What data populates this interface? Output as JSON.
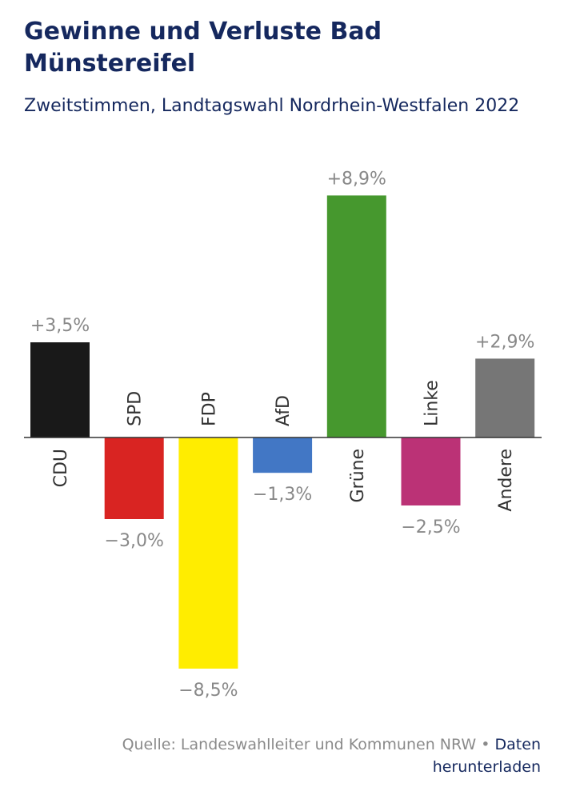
{
  "header": {
    "title": "Gewinne und Verluste Bad Münstereifel",
    "subtitle": "Zweitstimmen, Landtagswahl Nordrhein-Westfalen 2022"
  },
  "chart_data": {
    "type": "bar",
    "title": "Gewinne und Verluste Bad Münstereifel",
    "subtitle": "Zweitstimmen, Landtagswahl Nordrhein-Westfalen 2022",
    "categories": [
      "CDU",
      "SPD",
      "FDP",
      "AfD",
      "Grüne",
      "Linke",
      "Andere"
    ],
    "values": [
      3.5,
      -3.0,
      -8.5,
      -1.3,
      8.9,
      -2.5,
      2.9
    ],
    "value_labels": [
      "+3,5%",
      "−3,0%",
      "−8,5%",
      "−1,3%",
      "+8,9%",
      "−2,5%",
      "+2,9%"
    ],
    "colors": [
      "#191919",
      "#d92422",
      "#ffed00",
      "#4277c5",
      "#46982e",
      "#bb3276",
      "#767676"
    ],
    "label_color": "#888888",
    "category_label_color": "#333333",
    "grid": false,
    "legend": "none"
  },
  "footer": {
    "source": "Quelle: Landeswahlleiter und Kommunen NRW",
    "separator": " • ",
    "download_link": "Daten herunterladen"
  }
}
